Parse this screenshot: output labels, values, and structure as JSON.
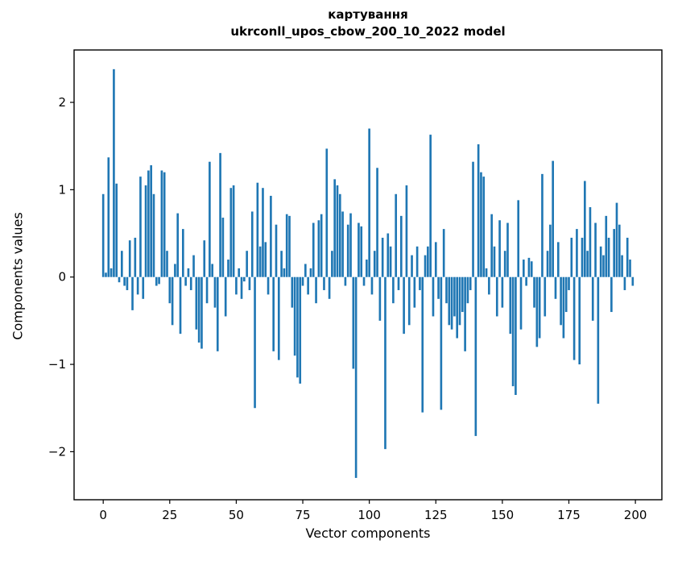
{
  "chart_data": {
    "type": "bar",
    "title": "картування",
    "subtitle": "ukrconll_upos_cbow_200_10_2022 model",
    "xlabel": "Vector components",
    "ylabel": "Components values",
    "bar_color": "#1f77b4",
    "axis_color": "#000000",
    "xlim": [
      -10.95,
      209.95
    ],
    "ylim": [
      -2.55,
      2.6
    ],
    "grid": false,
    "legend": "none",
    "xticks": [
      {
        "value": 0,
        "label": "0"
      },
      {
        "value": 25,
        "label": "25"
      },
      {
        "value": 50,
        "label": "50"
      },
      {
        "value": 75,
        "label": "75"
      },
      {
        "value": 100,
        "label": "100"
      },
      {
        "value": 125,
        "label": "125"
      },
      {
        "value": 150,
        "label": "150"
      },
      {
        "value": 175,
        "label": "175"
      },
      {
        "value": 200,
        "label": "200"
      }
    ],
    "yticks": [
      {
        "value": -2,
        "label": "−2"
      },
      {
        "value": -1,
        "label": "−1"
      },
      {
        "value": 0,
        "label": "0"
      },
      {
        "value": 1,
        "label": "1"
      },
      {
        "value": 2,
        "label": "2"
      }
    ],
    "x_start": 0,
    "bar_width": 0.8,
    "values": [
      0.95,
      0.05,
      1.37,
      0.1,
      2.38,
      1.07,
      -0.06,
      0.3,
      -0.1,
      -0.15,
      0.42,
      -0.38,
      0.45,
      -0.2,
      1.15,
      -0.25,
      1.05,
      1.22,
      1.28,
      0.95,
      -0.1,
      -0.08,
      1.22,
      1.2,
      0.3,
      -0.3,
      -0.55,
      0.15,
      0.73,
      -0.65,
      0.55,
      -0.1,
      0.1,
      -0.15,
      0.25,
      -0.6,
      -0.75,
      -0.82,
      0.42,
      -0.3,
      1.32,
      0.15,
      -0.35,
      -0.85,
      1.42,
      0.68,
      -0.45,
      0.2,
      1.02,
      1.05,
      -0.2,
      0.1,
      -0.25,
      -0.05,
      0.3,
      -0.15,
      0.75,
      -1.5,
      1.08,
      0.35,
      1.02,
      0.4,
      -0.2,
      0.93,
      -0.85,
      0.6,
      -0.95,
      0.3,
      0.1,
      0.72,
      0.7,
      -0.35,
      -0.9,
      -1.15,
      -1.22,
      -0.1,
      0.15,
      -0.2,
      0.1,
      0.62,
      -0.3,
      0.65,
      0.72,
      -0.15,
      1.47,
      -0.25,
      0.3,
      1.12,
      1.05,
      0.95,
      0.75,
      -0.1,
      0.6,
      0.73,
      -1.05,
      -2.3,
      0.62,
      0.58,
      -0.1,
      0.2,
      1.7,
      -0.2,
      0.3,
      1.25,
      -0.5,
      0.45,
      -1.97,
      0.5,
      0.35,
      -0.3,
      0.95,
      -0.15,
      0.7,
      -0.65,
      1.05,
      -0.55,
      0.25,
      -0.35,
      0.35,
      -0.15,
      -1.55,
      0.25,
      0.35,
      1.63,
      -0.45,
      0.4,
      -0.25,
      -1.52,
      0.55,
      -0.3,
      -0.55,
      -0.6,
      -0.45,
      -0.7,
      -0.55,
      -0.4,
      -0.85,
      -0.3,
      -0.15,
      1.32,
      -1.82,
      1.52,
      1.2,
      1.15,
      0.1,
      -0.2,
      0.72,
      0.35,
      -0.45,
      0.65,
      -0.35,
      0.3,
      0.62,
      -0.65,
      -1.25,
      -1.35,
      0.88,
      -0.6,
      0.2,
      -0.1,
      0.22,
      0.18,
      -0.35,
      -0.8,
      -0.7,
      1.18,
      -0.45,
      0.3,
      0.6,
      1.33,
      -0.25,
      0.4,
      -0.55,
      -0.7,
      -0.4,
      -0.15,
      0.45,
      -0.95,
      0.55,
      -1.0,
      0.45,
      1.1,
      0.3,
      0.8,
      -0.5,
      0.62,
      -1.45,
      0.35,
      0.25,
      0.7,
      0.45,
      -0.4,
      0.55,
      0.85,
      0.6,
      0.25,
      -0.15,
      0.45,
      0.2,
      -0.1
    ]
  }
}
